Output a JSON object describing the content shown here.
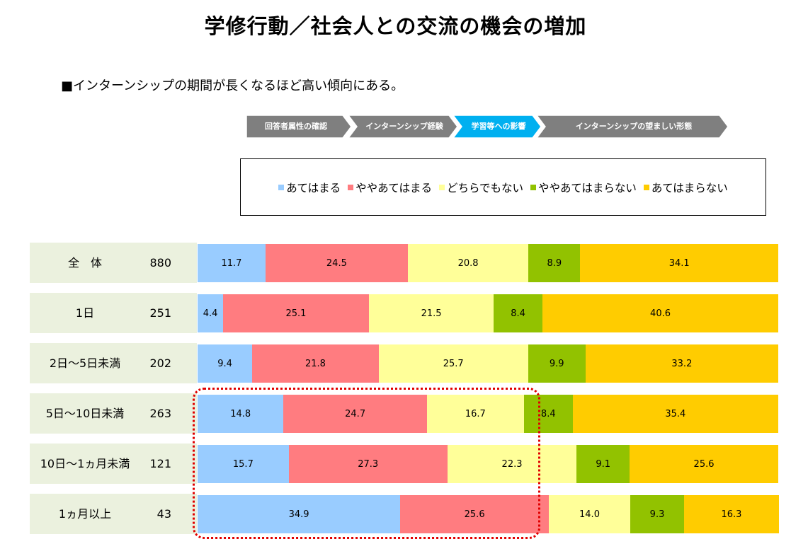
{
  "title": "学修行動／社会人との交流の機会の増加",
  "subtitle": "■インターンシップの期間が長くなるほど高い傾向にある。",
  "steps": [
    {
      "label": "回答者属性の確認",
      "active": false
    },
    {
      "label": "インターンシップ経験",
      "active": false
    },
    {
      "label": "学習等への影響",
      "active": true
    },
    {
      "label": "インターンシップの望ましい形態",
      "active": false
    }
  ],
  "colors": {
    "step_inactive": "#7f7f7f",
    "step_active": "#00b0f0",
    "row_label_bg": "#ebf1de",
    "highlight": "#e00000"
  },
  "chart_data": {
    "type": "bar",
    "orientation": "horizontal",
    "stacked": true,
    "percent": true,
    "categories": [
      "全　体",
      "1日",
      "2日～5日未満",
      "5日～10日未満",
      "10日～1ヵ月未満",
      "1ヵ月以上"
    ],
    "n": [
      "880",
      "251",
      "202",
      "263",
      "121",
      "43"
    ],
    "series": [
      {
        "name": "あてはまる",
        "color": "#99ccff",
        "values": [
          11.7,
          4.4,
          9.4,
          14.8,
          15.7,
          34.9
        ]
      },
      {
        "name": "ややあてはまる",
        "color": "#ff7c80",
        "values": [
          24.5,
          25.1,
          21.8,
          24.7,
          27.3,
          25.6
        ]
      },
      {
        "name": "どちらでもない",
        "color": "#ffff99",
        "values": [
          20.8,
          21.5,
          25.7,
          16.7,
          22.3,
          14.0
        ]
      },
      {
        "name": "ややあてはまらない",
        "color": "#92c200",
        "values": [
          8.9,
          8.4,
          9.9,
          8.4,
          9.1,
          9.3
        ]
      },
      {
        "name": "あてはまらない",
        "color": "#ffcc00",
        "values": [
          34.1,
          40.6,
          33.2,
          35.4,
          25.6,
          16.3
        ]
      }
    ],
    "labels": [
      [
        "11.7",
        "24.5",
        "20.8",
        "8.9",
        "34.1"
      ],
      [
        "4.4",
        "25.1",
        "21.5",
        "8.4",
        "40.6"
      ],
      [
        "9.4",
        "21.8",
        "25.7",
        "9.9",
        "33.2"
      ],
      [
        "14.8",
        "24.7",
        "16.7",
        "8.4",
        "35.4"
      ],
      [
        "15.7",
        "27.3",
        "22.3",
        "9.1",
        "25.6"
      ],
      [
        "34.9",
        "25.6",
        "14.0",
        "9.3",
        "16.3"
      ]
    ],
    "xlim": [
      0,
      100
    ],
    "legend_position": "top"
  }
}
